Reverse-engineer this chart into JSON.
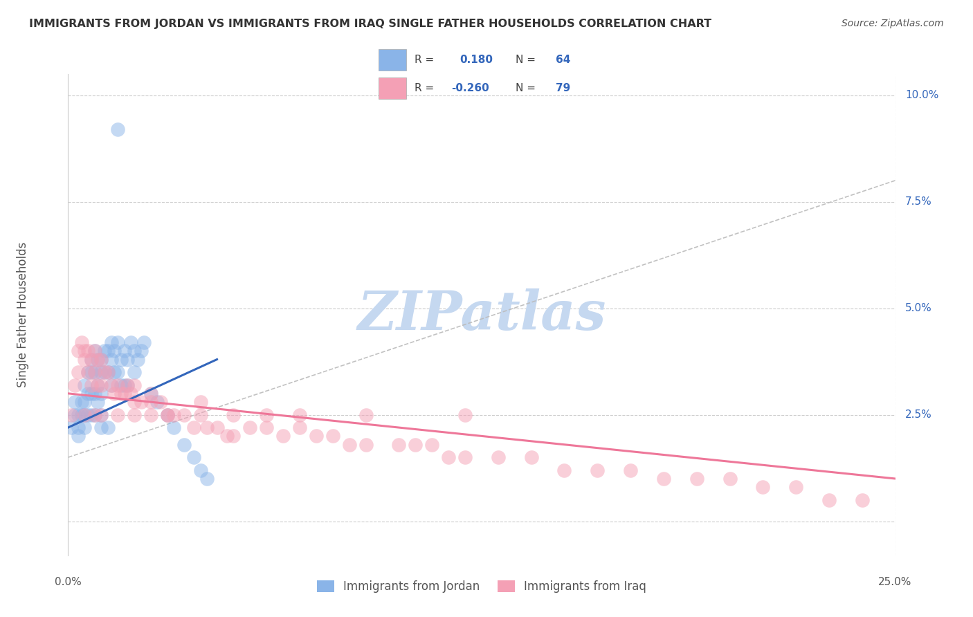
{
  "title": "IMMIGRANTS FROM JORDAN VS IMMIGRANTS FROM IRAQ SINGLE FATHER HOUSEHOLDS CORRELATION CHART",
  "source": "Source: ZipAtlas.com",
  "ylabel": "Single Father Households",
  "color_jordan": "#8ab4e8",
  "color_iraq": "#f4a0b5",
  "color_jordan_line": "#3366bb",
  "color_iraq_line": "#ee7799",
  "color_trend": "#bbbbbb",
  "xlim": [
    0.0,
    0.25
  ],
  "ylim": [
    -0.008,
    0.105
  ],
  "ytick_vals": [
    0.0,
    0.025,
    0.05,
    0.075,
    0.1
  ],
  "ytick_labels_right": [
    "",
    "2.5%",
    "5.0%",
    "7.5%",
    "10.0%"
  ],
  "background_color": "#ffffff",
  "grid_color": "#cccccc",
  "watermark": "ZIPatlas",
  "watermark_color": "#c5d8f0",
  "jordan_scatter_x": [
    0.001,
    0.002,
    0.002,
    0.003,
    0.003,
    0.003,
    0.004,
    0.004,
    0.005,
    0.005,
    0.005,
    0.005,
    0.006,
    0.006,
    0.006,
    0.007,
    0.007,
    0.007,
    0.007,
    0.008,
    0.008,
    0.008,
    0.009,
    0.009,
    0.009,
    0.01,
    0.01,
    0.01,
    0.01,
    0.011,
    0.011,
    0.012,
    0.012,
    0.013,
    0.013,
    0.013,
    0.014,
    0.014,
    0.015,
    0.015,
    0.016,
    0.016,
    0.017,
    0.017,
    0.018,
    0.018,
    0.019,
    0.02,
    0.02,
    0.021,
    0.022,
    0.023,
    0.025,
    0.027,
    0.03,
    0.032,
    0.035,
    0.038,
    0.04,
    0.042,
    0.008,
    0.01,
    0.012,
    0.015
  ],
  "jordan_scatter_y": [
    0.022,
    0.028,
    0.025,
    0.025,
    0.022,
    0.02,
    0.028,
    0.025,
    0.032,
    0.028,
    0.025,
    0.022,
    0.035,
    0.03,
    0.025,
    0.038,
    0.035,
    0.03,
    0.025,
    0.04,
    0.035,
    0.03,
    0.038,
    0.032,
    0.028,
    0.038,
    0.035,
    0.03,
    0.025,
    0.04,
    0.035,
    0.04,
    0.035,
    0.042,
    0.038,
    0.032,
    0.04,
    0.035,
    0.042,
    0.035,
    0.038,
    0.032,
    0.04,
    0.032,
    0.038,
    0.032,
    0.042,
    0.04,
    0.035,
    0.038,
    0.04,
    0.042,
    0.03,
    0.028,
    0.025,
    0.022,
    0.018,
    0.015,
    0.012,
    0.01,
    0.025,
    0.022,
    0.022,
    0.092
  ],
  "iraq_scatter_x": [
    0.001,
    0.002,
    0.003,
    0.003,
    0.004,
    0.005,
    0.005,
    0.006,
    0.006,
    0.007,
    0.007,
    0.008,
    0.008,
    0.009,
    0.009,
    0.01,
    0.01,
    0.011,
    0.012,
    0.013,
    0.014,
    0.015,
    0.016,
    0.017,
    0.018,
    0.019,
    0.02,
    0.02,
    0.022,
    0.025,
    0.025,
    0.028,
    0.03,
    0.032,
    0.035,
    0.038,
    0.04,
    0.042,
    0.045,
    0.048,
    0.05,
    0.055,
    0.06,
    0.065,
    0.07,
    0.075,
    0.08,
    0.085,
    0.09,
    0.1,
    0.105,
    0.11,
    0.115,
    0.12,
    0.13,
    0.14,
    0.15,
    0.16,
    0.17,
    0.18,
    0.19,
    0.2,
    0.21,
    0.22,
    0.23,
    0.24,
    0.005,
    0.008,
    0.01,
    0.015,
    0.02,
    0.025,
    0.03,
    0.04,
    0.05,
    0.06,
    0.07,
    0.09,
    0.12
  ],
  "iraq_scatter_y": [
    0.025,
    0.032,
    0.04,
    0.035,
    0.042,
    0.04,
    0.038,
    0.04,
    0.035,
    0.038,
    0.032,
    0.04,
    0.035,
    0.038,
    0.032,
    0.038,
    0.032,
    0.035,
    0.035,
    0.032,
    0.03,
    0.032,
    0.03,
    0.03,
    0.032,
    0.03,
    0.032,
    0.028,
    0.028,
    0.03,
    0.025,
    0.028,
    0.025,
    0.025,
    0.025,
    0.022,
    0.025,
    0.022,
    0.022,
    0.02,
    0.02,
    0.022,
    0.022,
    0.02,
    0.022,
    0.02,
    0.02,
    0.018,
    0.018,
    0.018,
    0.018,
    0.018,
    0.015,
    0.015,
    0.015,
    0.015,
    0.012,
    0.012,
    0.012,
    0.01,
    0.01,
    0.01,
    0.008,
    0.008,
    0.005,
    0.005,
    0.025,
    0.025,
    0.025,
    0.025,
    0.025,
    0.028,
    0.025,
    0.028,
    0.025,
    0.025,
    0.025,
    0.025,
    0.025
  ],
  "jordan_line_x": [
    0.0,
    0.045
  ],
  "jordan_line_y": [
    0.022,
    0.038
  ],
  "iraq_line_x": [
    0.0,
    0.25
  ],
  "iraq_line_y": [
    0.03,
    0.01
  ],
  "trend_line_x": [
    0.0,
    0.25
  ],
  "trend_line_y": [
    0.015,
    0.08
  ],
  "legend_label1": "Immigrants from Jordan",
  "legend_label2": "Immigrants from Iraq"
}
